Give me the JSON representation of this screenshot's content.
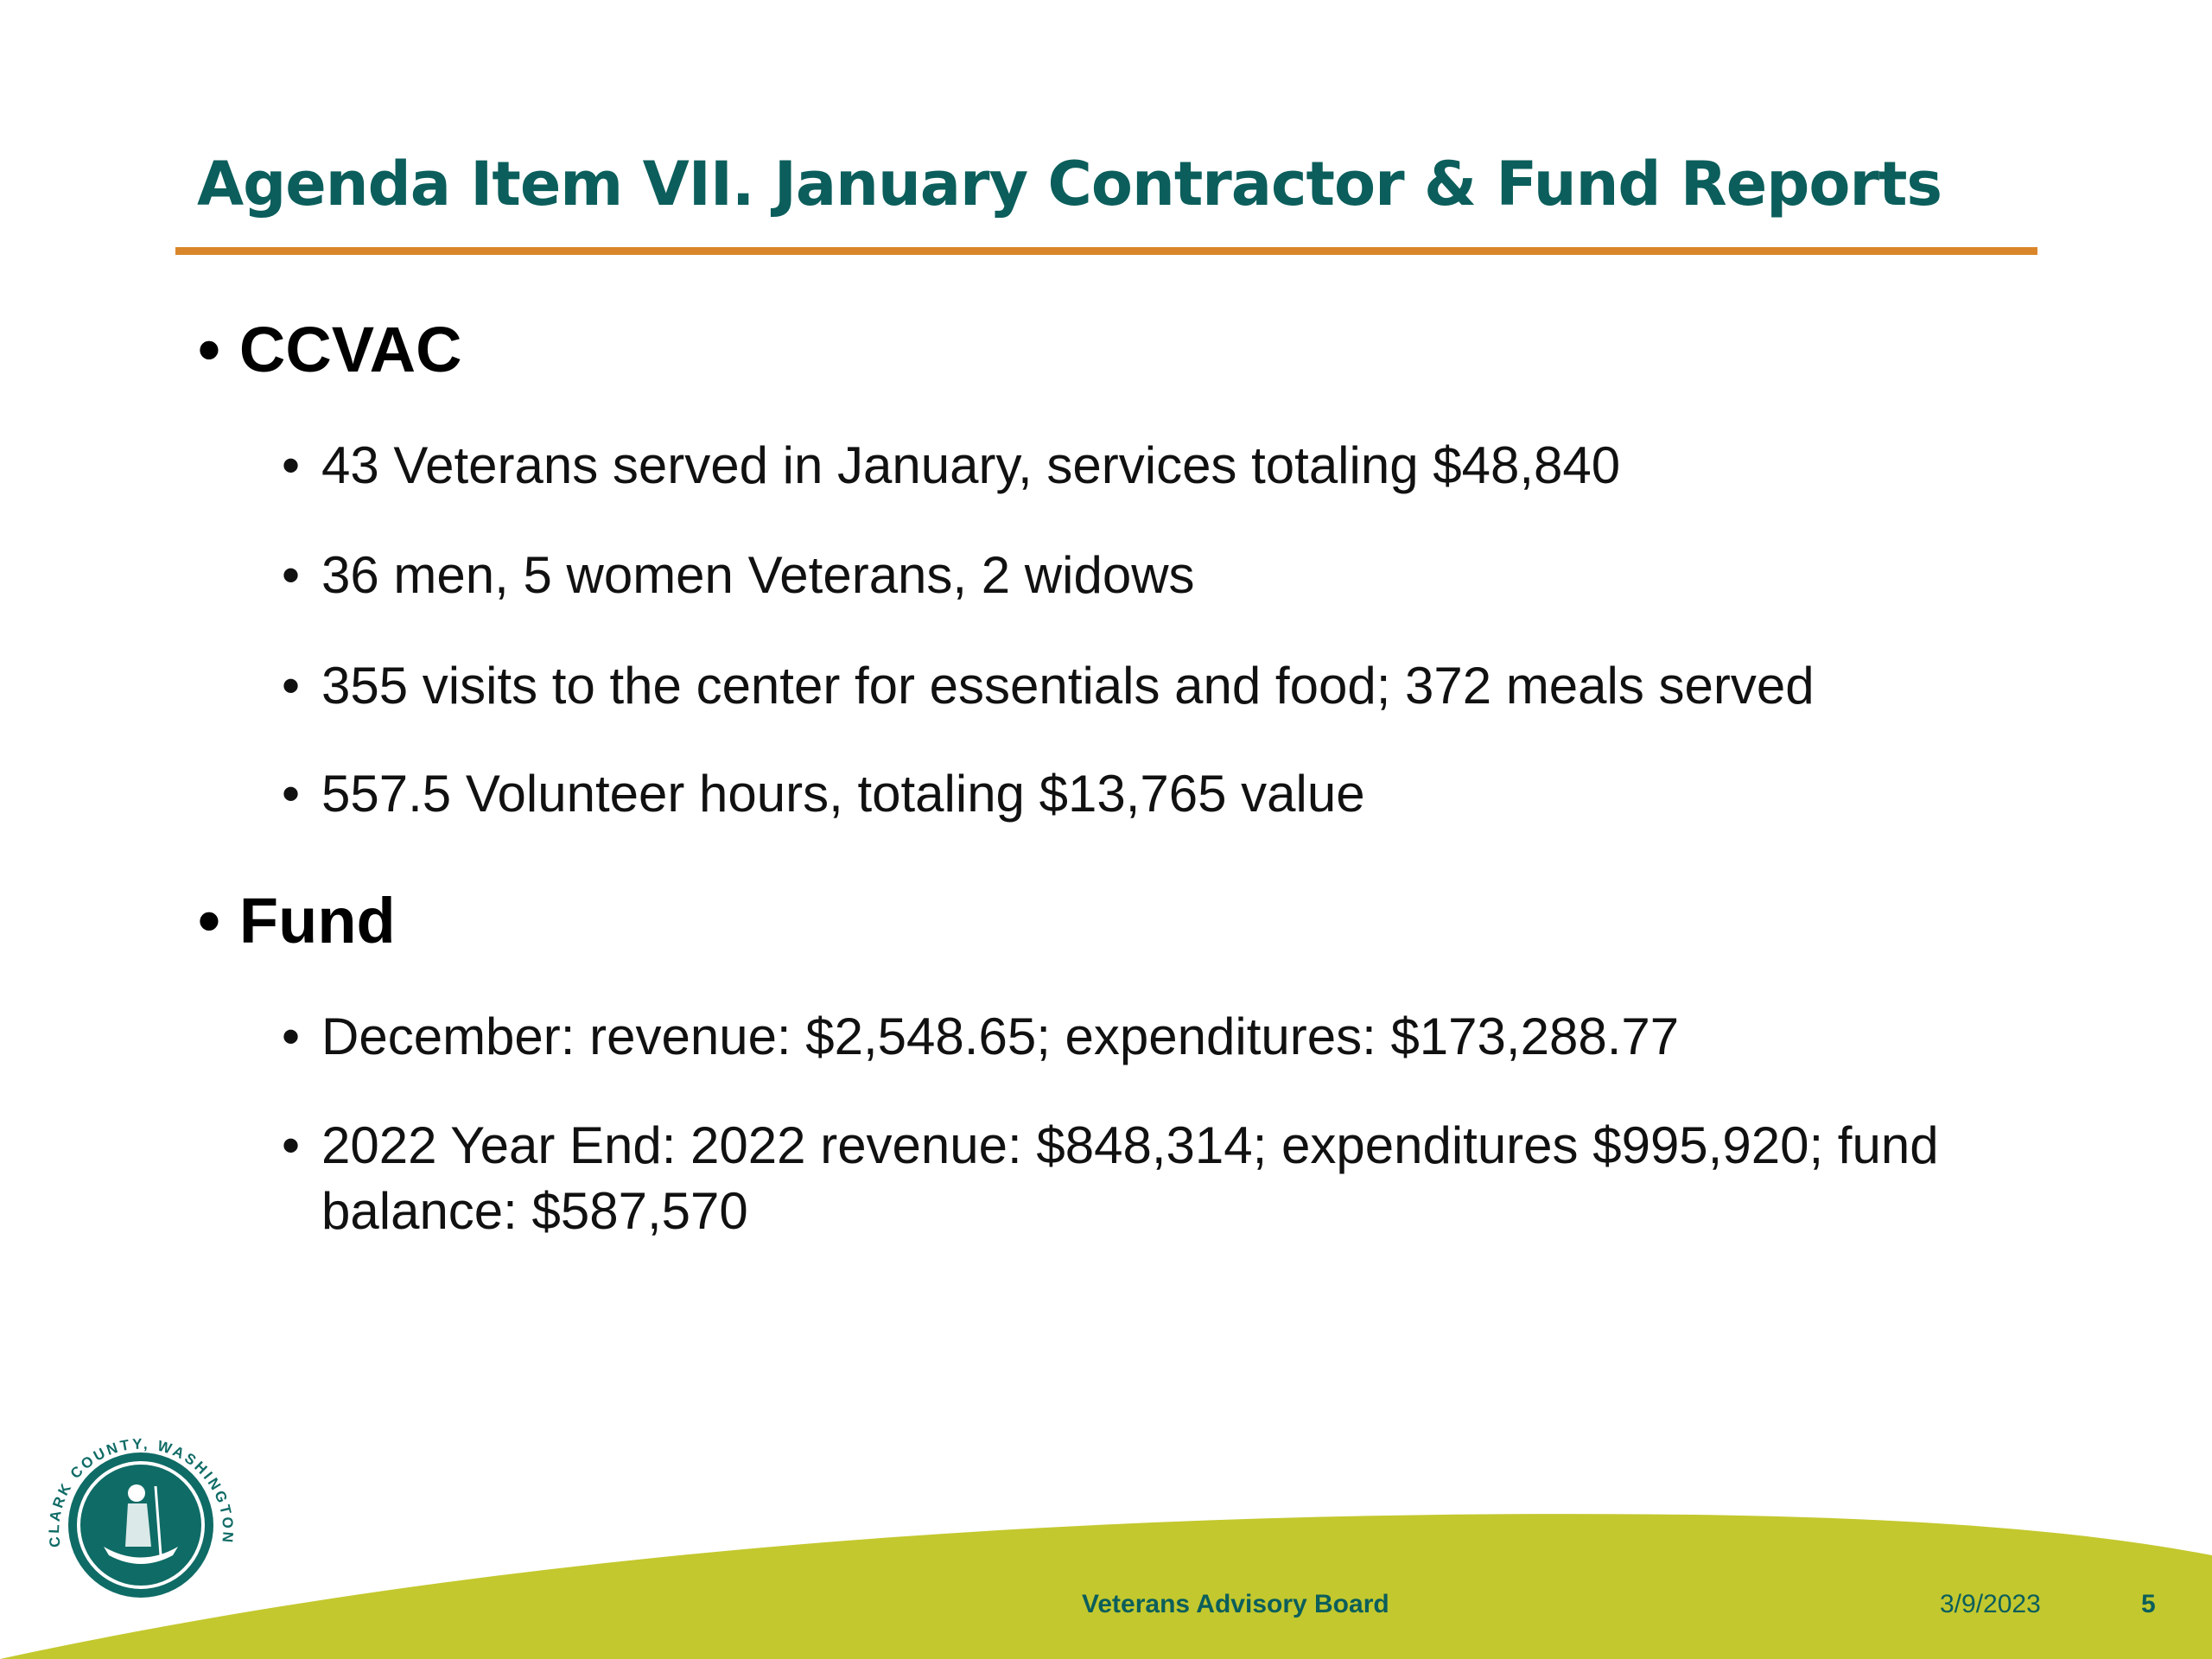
{
  "title": "Agenda Item VII. January Contractor & Fund Reports",
  "colors": {
    "title": "#0b5e5b",
    "rule": "#d9862a",
    "footer_band": "#c3c82e"
  },
  "sections": [
    {
      "heading": "CCVAC",
      "items": [
        "43 Veterans served in January, services totaling $48,840",
        "36 men, 5 women Veterans, 2 widows",
        "355 visits to the center for essentials and food; 372 meals served",
        "557.5 Volunteer hours, totaling $13,765 value"
      ]
    },
    {
      "heading": "Fund",
      "items": [
        "December: revenue: $2,548.65; expenditures: $173,288.77",
        "2022 Year End: 2022 revenue: $848,314; expenditures $995,920; fund balance: $587,570"
      ]
    }
  ],
  "bullet": "•",
  "footer": {
    "org": "Veterans Advisory Board",
    "date": "3/9/2023",
    "page": "5"
  },
  "logo": {
    "text": "CLARK COUNTY, WASHINGTON"
  }
}
